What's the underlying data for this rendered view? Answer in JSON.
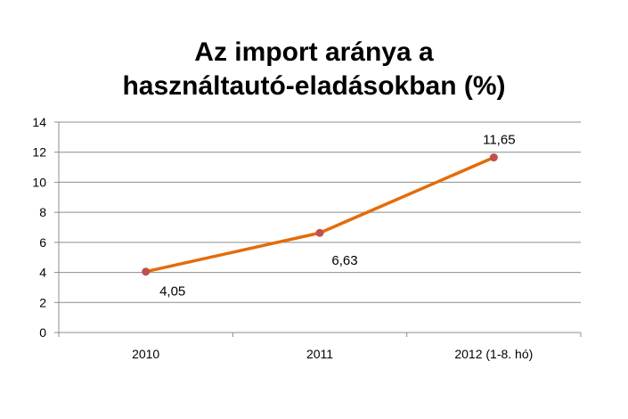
{
  "chart_data": {
    "type": "line",
    "title_lines": [
      "Az import aránya a",
      "használtautó-eladásokban (%)"
    ],
    "categories": [
      "2010",
      "2011",
      "2012 (1-8. hó)"
    ],
    "series": [
      {
        "values": [
          4.05,
          6.63,
          11.65
        ],
        "data_labels": [
          "4,05",
          "6,63",
          "11,65"
        ],
        "color": "#E46C0A",
        "marker_color": "#C0504D"
      }
    ],
    "ylim": [
      0,
      14
    ],
    "yticks": [
      0,
      2,
      4,
      6,
      8,
      10,
      12,
      14
    ],
    "xlabel": "",
    "ylabel": "",
    "grid": true,
    "grid_color": "#8C8C8C",
    "axis_color": "#8C8C8C"
  }
}
